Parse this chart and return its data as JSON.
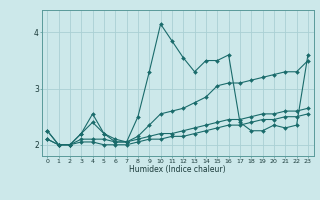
{
  "xlabel": "Humidex (Indice chaleur)",
  "background_color": "#cce8ea",
  "grid_color": "#aad0d4",
  "line_color": "#1a6b6b",
  "x": [
    0,
    1,
    2,
    3,
    4,
    5,
    6,
    7,
    8,
    9,
    10,
    11,
    12,
    13,
    14,
    15,
    16,
    17,
    18,
    19,
    20,
    21,
    22,
    23
  ],
  "series1": [
    2.25,
    2.0,
    2.0,
    2.2,
    2.55,
    2.2,
    2.1,
    2.05,
    2.5,
    3.3,
    4.15,
    3.85,
    3.55,
    3.3,
    3.5,
    3.5,
    3.6,
    2.4,
    2.25,
    2.25,
    2.35,
    2.3,
    2.35,
    3.6
  ],
  "series2": [
    2.1,
    2.0,
    2.0,
    2.2,
    2.4,
    2.2,
    2.05,
    2.05,
    2.15,
    2.35,
    2.55,
    2.6,
    2.65,
    2.75,
    2.85,
    3.05,
    3.1,
    3.1,
    3.15,
    3.2,
    3.25,
    3.3,
    3.3,
    3.5
  ],
  "series3": [
    2.25,
    2.0,
    2.0,
    2.1,
    2.1,
    2.1,
    2.05,
    2.05,
    2.1,
    2.15,
    2.2,
    2.2,
    2.25,
    2.3,
    2.35,
    2.4,
    2.45,
    2.45,
    2.5,
    2.55,
    2.55,
    2.6,
    2.6,
    2.65
  ],
  "series4": [
    2.1,
    2.0,
    2.0,
    2.05,
    2.05,
    2.0,
    2.0,
    2.0,
    2.05,
    2.1,
    2.1,
    2.15,
    2.15,
    2.2,
    2.25,
    2.3,
    2.35,
    2.35,
    2.4,
    2.45,
    2.45,
    2.5,
    2.5,
    2.55
  ],
  "ylim": [
    1.8,
    4.4
  ],
  "yticks": [
    2.0,
    3.0,
    4.0
  ],
  "xlim": [
    -0.5,
    23.5
  ]
}
